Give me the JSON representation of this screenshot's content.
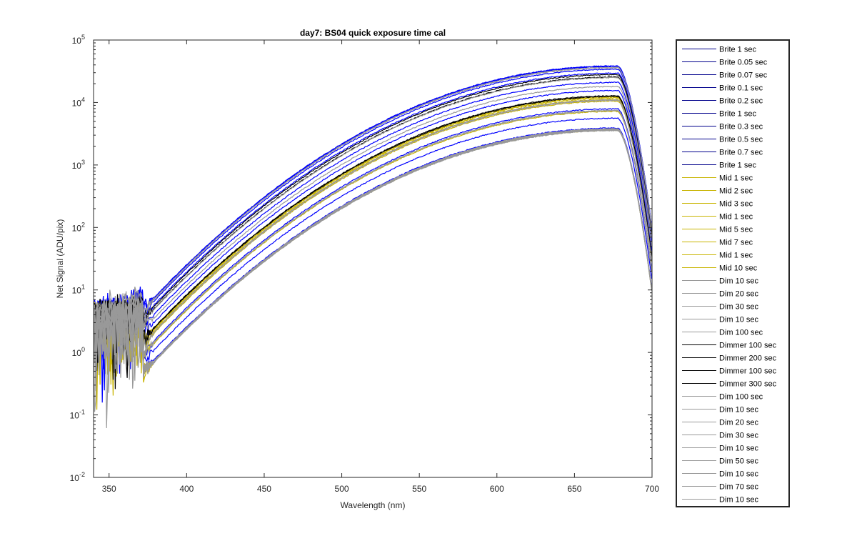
{
  "chart_data": {
    "type": "line",
    "title": "day7: BS04  quick exposure time cal",
    "xlabel": "Wavelength (nm)",
    "ylabel": "Net Signal (ADU/pix)",
    "xlim": [
      340,
      700
    ],
    "ylim": [
      0.01,
      100000
    ],
    "yscale": "log",
    "xticks": [
      350,
      400,
      450,
      500,
      550,
      600,
      650,
      700
    ],
    "yticks": [
      {
        "value": 0.01,
        "base": "10",
        "exp": "-2"
      },
      {
        "value": 0.1,
        "base": "10",
        "exp": "-1"
      },
      {
        "value": 1,
        "base": "10",
        "exp": "0"
      },
      {
        "value": 10,
        "base": "10",
        "exp": "1"
      },
      {
        "value": 100,
        "base": "10",
        "exp": "2"
      },
      {
        "value": 1000,
        "base": "10",
        "exp": "3"
      },
      {
        "value": 10000,
        "base": "10",
        "exp": "4"
      },
      {
        "value": 100000,
        "base": "10",
        "exp": "5"
      }
    ],
    "grid": false,
    "legend_position": "outside-right",
    "colors": {
      "brite": "#0000ff",
      "mid": "#c8b400",
      "dim": "#999999",
      "dimmer": "#000000",
      "legend_brite": "#00008b"
    },
    "series": [
      {
        "name": "Brite 1 sec",
        "group": "brite",
        "peak": 38500
      },
      {
        "name": "Brite 0.05 sec",
        "group": "brite",
        "peak": 3900
      },
      {
        "name": "Brite 0.07 sec",
        "group": "brite",
        "peak": 5600
      },
      {
        "name": "Brite 0.1 sec",
        "group": "brite",
        "peak": 7900
      },
      {
        "name": "Brite 0.2 sec",
        "group": "brite",
        "peak": 15500
      },
      {
        "name": "Brite 1 sec",
        "group": "brite",
        "peak": 38000
      },
      {
        "name": "Brite 0.3 sec",
        "group": "brite",
        "peak": 21000
      },
      {
        "name": "Brite 0.5 sec",
        "group": "brite",
        "peak": 29500
      },
      {
        "name": "Brite 0.7 sec",
        "group": "brite",
        "peak": 34000
      },
      {
        "name": "Brite 1 sec",
        "group": "brite",
        "peak": 37800
      },
      {
        "name": "Mid 1 sec",
        "group": "mid",
        "peak": 3700
      },
      {
        "name": "Mid 2 sec",
        "group": "mid",
        "peak": 7200
      },
      {
        "name": "Mid 3 sec",
        "group": "mid",
        "peak": 10500
      },
      {
        "name": "Mid 1 sec",
        "group": "mid",
        "peak": 3650
      },
      {
        "name": "Mid 5 sec",
        "group": "mid",
        "peak": 11200
      },
      {
        "name": "Mid 7 sec",
        "group": "mid",
        "peak": 11800
      },
      {
        "name": "Mid 1 sec",
        "group": "mid",
        "peak": 3600
      },
      {
        "name": "Mid 10 sec",
        "group": "mid",
        "peak": 12200
      },
      {
        "name": "Dim 10 sec",
        "group": "dim",
        "peak": 3800
      },
      {
        "name": "Dim 20 sec",
        "group": "dim",
        "peak": 7500
      },
      {
        "name": "Dim 30 sec",
        "group": "dim",
        "peak": 11000
      },
      {
        "name": "Dim 10 sec",
        "group": "dim",
        "peak": 3750
      },
      {
        "name": "Dim 100 sec",
        "group": "dim",
        "peak": 36000
      },
      {
        "name": "Dimmer 100 sec",
        "group": "dimmer",
        "peak": 12500
      },
      {
        "name": "Dimmer 200 sec",
        "group": "dimmer",
        "peak": 25500
      },
      {
        "name": "Dimmer 100 sec",
        "group": "dimmer",
        "peak": 12800
      },
      {
        "name": "Dimmer 300 sec",
        "group": "dimmer",
        "peak": 28000
      },
      {
        "name": "Dim 100 sec",
        "group": "dim",
        "peak": 36500
      },
      {
        "name": "Dim 10 sec",
        "group": "dim",
        "peak": 3700
      },
      {
        "name": "Dim 20 sec",
        "group": "dim",
        "peak": 7400
      },
      {
        "name": "Dim 30 sec",
        "group": "dim",
        "peak": 10800
      },
      {
        "name": "Dim 10 sec",
        "group": "dim",
        "peak": 3650
      },
      {
        "name": "Dim 50 sec",
        "group": "dim",
        "peak": 18000
      },
      {
        "name": "Dim 10 sec",
        "group": "dim",
        "peak": 3600
      },
      {
        "name": "Dim 70 sec",
        "group": "dim",
        "peak": 25000
      },
      {
        "name": "Dim 10 sec",
        "group": "dim",
        "peak": 3550
      }
    ]
  }
}
